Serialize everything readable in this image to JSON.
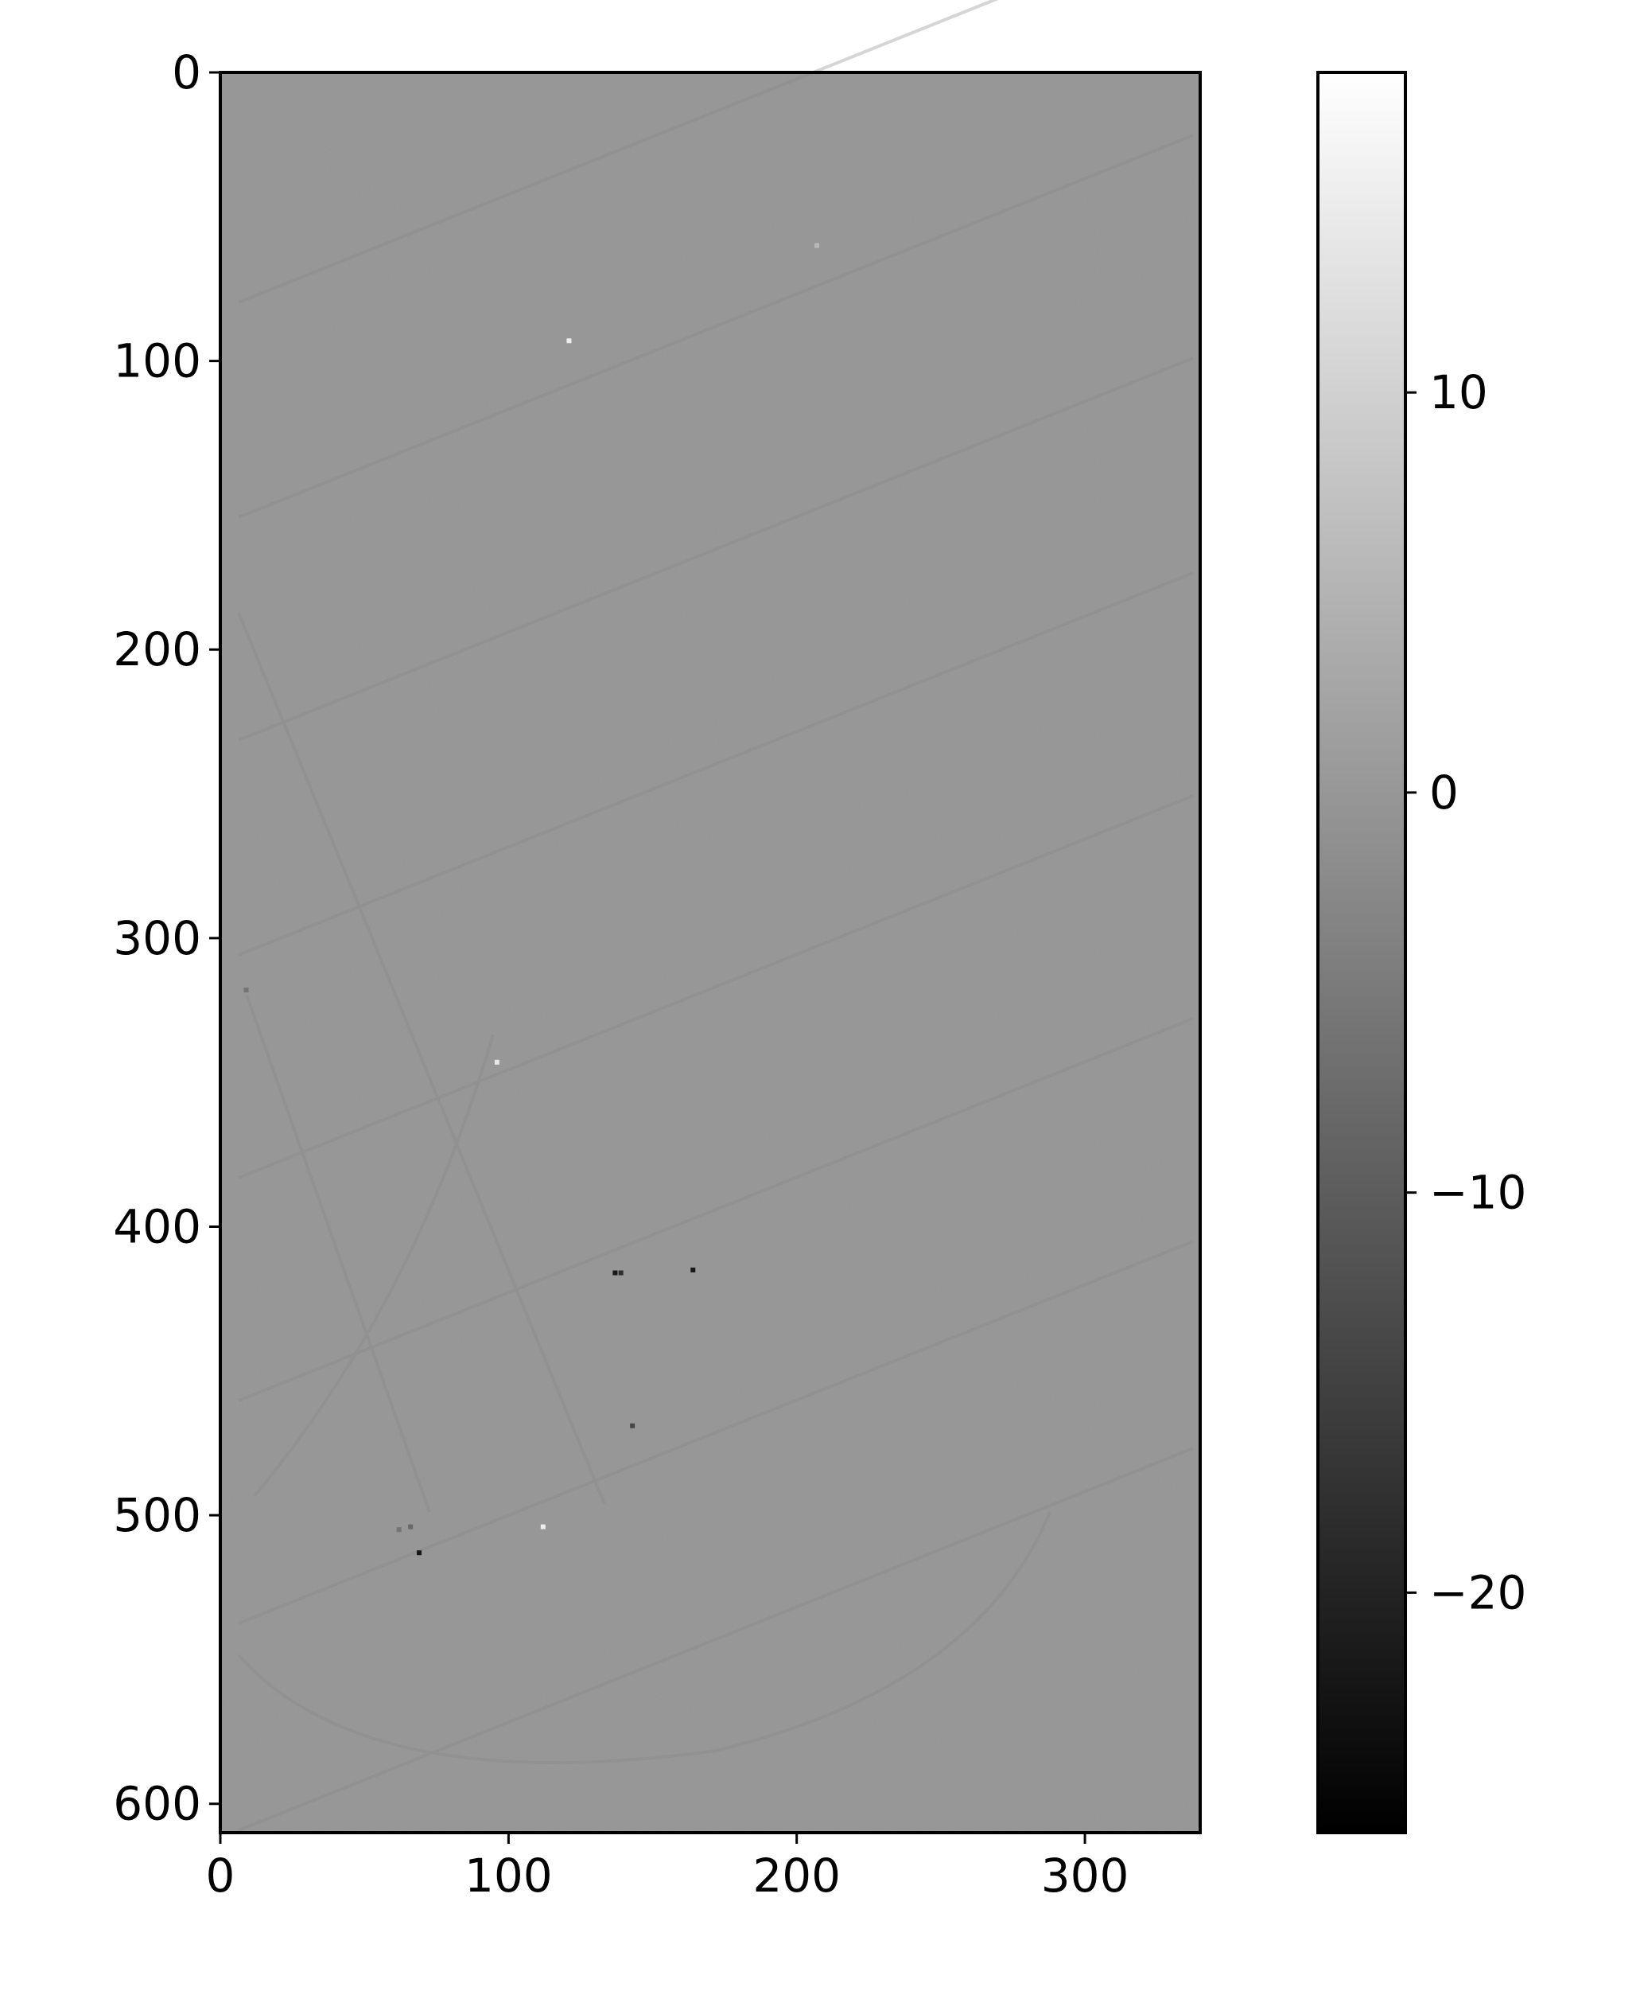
{
  "chart_data": {
    "type": "heatmap",
    "colormap": "gray",
    "image_shape": {
      "rows": 610,
      "cols": 340
    },
    "xlim": [
      0,
      340
    ],
    "ylim": [
      610,
      0
    ],
    "x_ticks": [
      0,
      100,
      200,
      300
    ],
    "x_tick_labels": [
      "0",
      "100",
      "200",
      "300"
    ],
    "y_ticks": [
      0,
      100,
      200,
      300,
      400,
      500,
      600
    ],
    "y_tick_labels": [
      "0",
      "100",
      "200",
      "300",
      "400",
      "500",
      "600"
    ],
    "colorbar": {
      "range": [
        -26,
        18
      ],
      "ticks": [
        10,
        0,
        -10,
        -20
      ],
      "tick_labels": [
        "10",
        "0",
        "−10",
        "−20"
      ]
    },
    "background_value": 2,
    "outliers": [
      {
        "x": 121,
        "y": 93,
        "value": 15
      },
      {
        "x": 207,
        "y": 60,
        "value": 6
      },
      {
        "x": 96,
        "y": 343,
        "value": 14
      },
      {
        "x": 137,
        "y": 416,
        "value": -22
      },
      {
        "x": 164,
        "y": 415,
        "value": -22
      },
      {
        "x": 139,
        "y": 416,
        "value": -18
      },
      {
        "x": 112,
        "y": 504,
        "value": 15
      },
      {
        "x": 69,
        "y": 513,
        "value": -22
      },
      {
        "x": 66,
        "y": 504,
        "value": -8
      },
      {
        "x": 62,
        "y": 505,
        "value": -6
      },
      {
        "x": 143,
        "y": 469,
        "value": -14
      },
      {
        "x": 9,
        "y": 318,
        "value": -6
      }
    ]
  }
}
